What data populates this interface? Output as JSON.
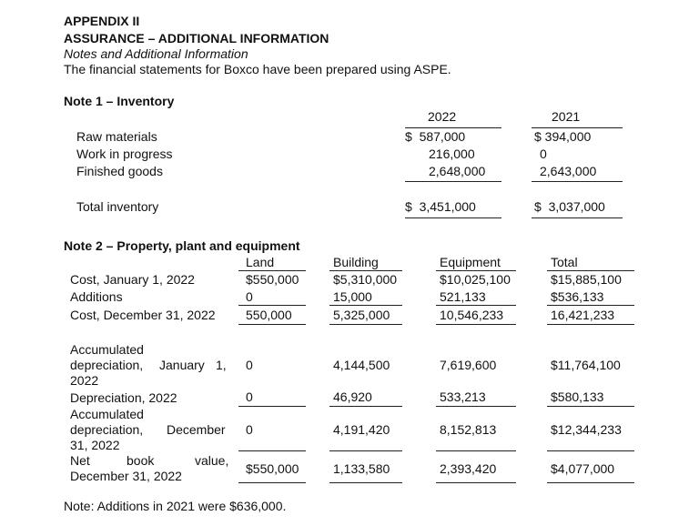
{
  "header": {
    "appendix": "APPENDIX II",
    "title": "ASSURANCE – ADDITIONAL INFORMATION",
    "subtitle": "Notes and Additional Information",
    "intro": "The financial statements for Boxco have been prepared using ASPE."
  },
  "note1": {
    "title": "Note 1 – Inventory",
    "columns": [
      "2022",
      "2021"
    ],
    "rows": [
      {
        "label": "Raw materials",
        "v2022": "$  587,000",
        "v2021": "$ 394,000"
      },
      {
        "label": "Work in progress",
        "v2022": "216,000",
        "v2021": "0"
      },
      {
        "label": "Finished goods",
        "v2022": "2,648,000",
        "v2021": "2,643,000"
      }
    ],
    "total": {
      "label": "Total inventory",
      "v2022": "$  3,451,000",
      "v2021": "$  3,037,000"
    }
  },
  "note2": {
    "title": "Note 2 – Property, plant and equipment",
    "columns": [
      "Land",
      "Building",
      "Equipment",
      "Total"
    ],
    "cost_rows": [
      {
        "label": "Cost, January 1, 2022",
        "land": "$550,000",
        "building": "$5,310,000",
        "equipment": "$10,025,100",
        "total": "$15,885,100"
      },
      {
        "label": "Additions",
        "land": "0",
        "building": "15,000",
        "equipment": "521,133",
        "total": "$536,133"
      },
      {
        "label": "Cost, December 31, 2022",
        "land": "550,000",
        "building": "5,325,000",
        "equipment": "10,546,233",
        "total": "16,421,233"
      }
    ],
    "accum_open": {
      "label_a": "Accumulated",
      "label_b1": "depreciation,",
      "label_b2": "January",
      "label_b3": "1,",
      "label_c": "2022",
      "land": "0",
      "building": "4,144,500",
      "equipment": "7,619,600",
      "total": "$11,764,100"
    },
    "dep2022": {
      "label": "Depreciation, 2022",
      "land": "0",
      "building": "46,920",
      "equipment": "533,213",
      "total": "$580,133"
    },
    "accum_close": {
      "label_a": "Accumulated",
      "label_b1": "depreciation,",
      "label_b2": "December",
      "label_c": "31, 2022",
      "land": "0",
      "building": "4,191,420",
      "equipment": "8,152,813",
      "total": "$12,344,233"
    },
    "nbv": {
      "label_a1": "Net",
      "label_a2": "book",
      "label_a3": "value,",
      "label_b": "December 31, 2022",
      "land": "$550,000",
      "building": "1,133,580",
      "equipment": "2,393,420",
      "total": "$4,077,000"
    }
  },
  "footnote": "Note: Additions in 2021 were $636,000."
}
